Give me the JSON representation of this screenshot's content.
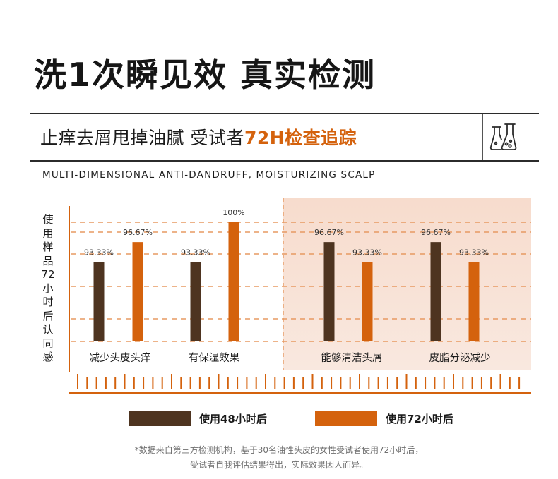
{
  "headline": "洗1次瞬见效 真实检测",
  "banner": {
    "subtitle_main": "止痒去屑甩掉油腻 受试者",
    "subtitle_highlight": "72H检查追踪",
    "icon": "lab-flask-icon"
  },
  "english_line": "MULTI-DIMENSIONAL ANTI-DANDRUFF, MOISTURIZING SCALP",
  "y_axis_label": "使用样品72小时后认同感",
  "colors": {
    "dark_brown": "#4e3420",
    "orange": "#d4620d",
    "panel_top": "#f7dccd",
    "panel_bottom": "#f9e8df"
  },
  "chart_data": {
    "type": "bar",
    "categories": [
      "减少头皮头痒",
      "有保湿效果",
      "能够清洁头屑",
      "皮脂分泌减少"
    ],
    "series": [
      {
        "name": "使用48小时后",
        "values": [
          93.33,
          93.33,
          96.67,
          96.67
        ],
        "labels": [
          "93.33%",
          "93.33%",
          "96.67%",
          "96.67%"
        ]
      },
      {
        "name": "使用72小时后",
        "values": [
          96.67,
          100,
          93.33,
          93.33
        ],
        "labels": [
          "96.67%",
          "100%",
          "93.33%",
          "93.33%"
        ]
      }
    ],
    "ylabel": "使用样品72小时后认同感",
    "ylim": [
      80,
      100
    ],
    "grid": true
  },
  "legend": [
    {
      "label": "使用48小时后"
    },
    {
      "label": "使用72小时后"
    }
  ],
  "footnote": {
    "line1": "*数据来自第三方检测机构，基于30名油性头皮的女性受试者使用72小时后，",
    "line2": "受试者自我评估结果得出，实际效果因人而异。"
  }
}
